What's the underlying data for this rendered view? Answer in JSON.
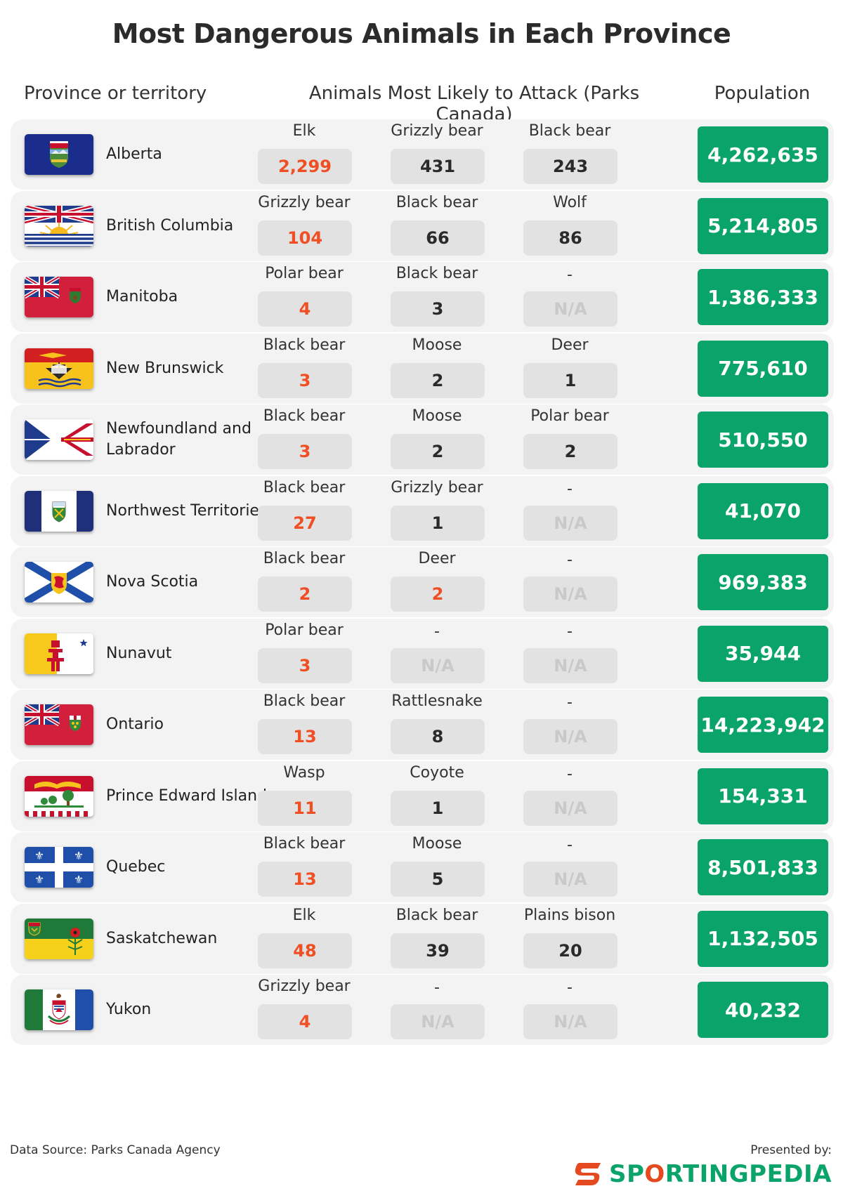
{
  "title": "Most Dangerous Animals in Each Province",
  "headers": {
    "province": "Province or territory",
    "animals": "Animals Most Likely to Attack (Parks Canada)",
    "population": "Population"
  },
  "rows": [
    {
      "name": "Alberta",
      "flag": "alberta-flag",
      "animals": [
        {
          "name": "Elk",
          "value": "2,299",
          "highlight": true
        },
        {
          "name": "Grizzly bear",
          "value": "431",
          "highlight": false
        },
        {
          "name": "Black bear",
          "value": "243",
          "highlight": false
        }
      ],
      "population": "4,262,635"
    },
    {
      "name": "British Columbia",
      "flag": "british-columbia-flag",
      "animals": [
        {
          "name": "Grizzly bear",
          "value": "104",
          "highlight": true
        },
        {
          "name": "Black bear",
          "value": "66",
          "highlight": false
        },
        {
          "name": "Wolf",
          "value": "86",
          "highlight": false
        }
      ],
      "population": "5,214,805"
    },
    {
      "name": "Manitoba",
      "flag": "manitoba-flag",
      "animals": [
        {
          "name": "Polar bear",
          "value": "4",
          "highlight": true
        },
        {
          "name": "Black bear",
          "value": "3",
          "highlight": false
        },
        {
          "name": "-",
          "value": "N/A",
          "highlight": false,
          "na": true
        }
      ],
      "population": "1,386,333"
    },
    {
      "name": "New Brunswick",
      "flag": "new-brunswick-flag",
      "animals": [
        {
          "name": "Black bear",
          "value": "3",
          "highlight": true
        },
        {
          "name": "Moose",
          "value": "2",
          "highlight": false
        },
        {
          "name": "Deer",
          "value": "1",
          "highlight": false
        }
      ],
      "population": "775,610"
    },
    {
      "name": "Newfoundland and Labrador",
      "flag": "newfoundland-flag",
      "animals": [
        {
          "name": "Black bear",
          "value": "3",
          "highlight": true
        },
        {
          "name": "Moose",
          "value": "2",
          "highlight": false
        },
        {
          "name": "Polar bear",
          "value": "2",
          "highlight": false
        }
      ],
      "population": "510,550"
    },
    {
      "name": "Northwest Territories",
      "flag": "northwest-territories-flag",
      "animals": [
        {
          "name": "Black bear",
          "value": "27",
          "highlight": true
        },
        {
          "name": "Grizzly bear",
          "value": "1",
          "highlight": false
        },
        {
          "name": "-",
          "value": "N/A",
          "highlight": false,
          "na": true
        }
      ],
      "population": "41,070"
    },
    {
      "name": "Nova Scotia",
      "flag": "nova-scotia-flag",
      "animals": [
        {
          "name": "Black bear",
          "value": "2",
          "highlight": true
        },
        {
          "name": "Deer",
          "value": "2",
          "highlight": true
        },
        {
          "name": "-",
          "value": "N/A",
          "highlight": false,
          "na": true
        }
      ],
      "population": "969,383"
    },
    {
      "name": "Nunavut",
      "flag": "nunavut-flag",
      "animals": [
        {
          "name": "Polar bear",
          "value": "3",
          "highlight": true
        },
        {
          "name": "-",
          "value": "N/A",
          "highlight": false,
          "na": true
        },
        {
          "name": "-",
          "value": "N/A",
          "highlight": false,
          "na": true
        }
      ],
      "population": "35,944"
    },
    {
      "name": "Ontario",
      "flag": "ontario-flag",
      "animals": [
        {
          "name": "Black bear",
          "value": "13",
          "highlight": true
        },
        {
          "name": "Rattlesnake",
          "value": "8",
          "highlight": false
        },
        {
          "name": "-",
          "value": "N/A",
          "highlight": false,
          "na": true
        }
      ],
      "population": "14,223,942"
    },
    {
      "name": "Prince Edward Island",
      "flag": "pei-flag",
      "animals": [
        {
          "name": "Wasp",
          "value": "11",
          "highlight": true
        },
        {
          "name": "Coyote",
          "value": "1",
          "highlight": false
        },
        {
          "name": "-",
          "value": "N/A",
          "highlight": false,
          "na": true
        }
      ],
      "population": "154,331"
    },
    {
      "name": "Quebec",
      "flag": "quebec-flag",
      "animals": [
        {
          "name": "Black bear",
          "value": "13",
          "highlight": true
        },
        {
          "name": "Moose",
          "value": "5",
          "highlight": false
        },
        {
          "name": "-",
          "value": "N/A",
          "highlight": false,
          "na": true
        }
      ],
      "population": "8,501,833"
    },
    {
      "name": "Saskatchewan",
      "flag": "saskatchewan-flag",
      "animals": [
        {
          "name": "Elk",
          "value": "48",
          "highlight": true
        },
        {
          "name": "Black bear",
          "value": "39",
          "highlight": false
        },
        {
          "name": "Plains bison",
          "value": "20",
          "highlight": false
        }
      ],
      "population": "1,132,505"
    },
    {
      "name": "Yukon",
      "flag": "yukon-flag",
      "animals": [
        {
          "name": "Grizzly bear",
          "value": "4",
          "highlight": true
        },
        {
          "name": "-",
          "value": "N/A",
          "highlight": false,
          "na": true
        },
        {
          "name": "-",
          "value": "N/A",
          "highlight": false,
          "na": true
        }
      ],
      "population": "40,232"
    }
  ],
  "footer": {
    "source": "Data Source: Parks Canada Agency",
    "presented": "Presented by:",
    "logo_text_a": "SP",
    "logo_text_o": "O",
    "logo_text_b": "RTINGPEDIA"
  },
  "colors": {
    "highlight": "#f04e23",
    "population_bg": "#0aa46b",
    "row_bg": "#f3f3f3",
    "value_box": "#e2e2e2",
    "na_text": "#c9c9c9"
  }
}
